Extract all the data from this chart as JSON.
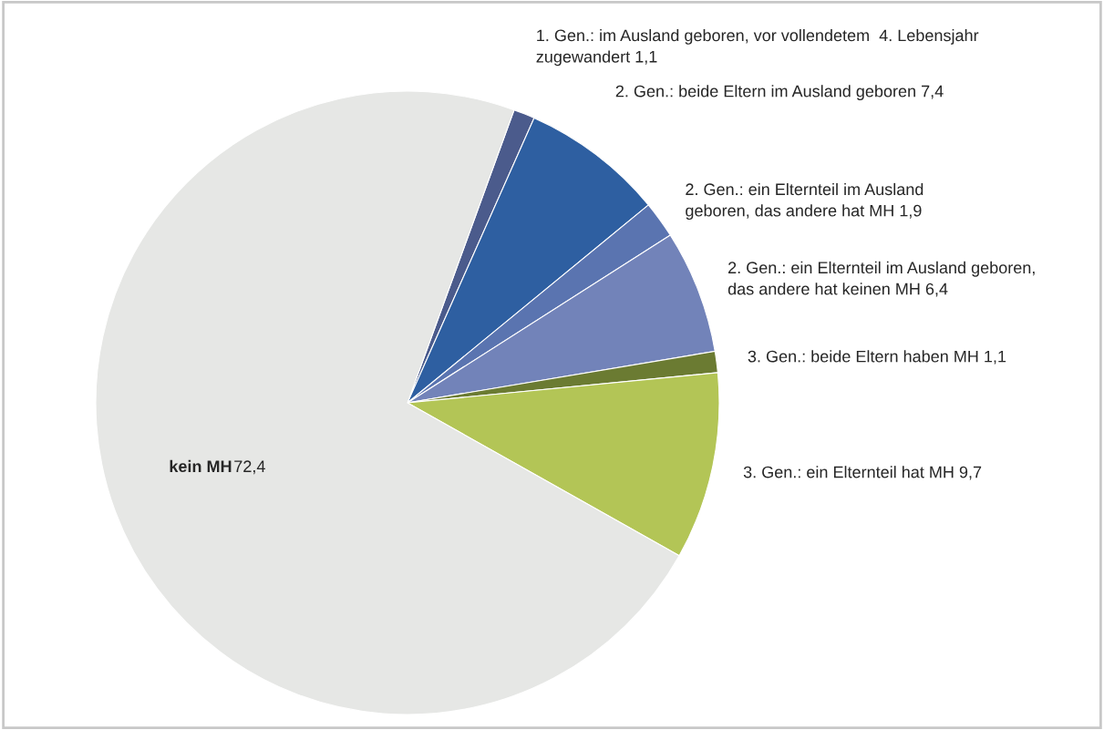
{
  "chart_data": {
    "type": "pie",
    "categories": [
      "1. Gen.: im Ausland geboren, vor vollendetem  4. Lebensjahr\nzugewandert",
      "2. Gen.: beide Eltern im Ausland geboren",
      "2. Gen.: ein Elternteil im Ausland\ngeboren, das andere hat MH",
      "2. Gen.: ein Elternteil im Ausland geboren,\ndas andere hat keinen MH",
      "3. Gen.: beide Eltern haben MH",
      "3. Gen.: ein Elternteil hat MH",
      "kein MH"
    ],
    "values": [
      1.1,
      7.4,
      1.9,
      6.4,
      1.1,
      9.7,
      72.4
    ],
    "value_labels": [
      "1,1",
      "7,4",
      "1,9",
      "6,4",
      "1,1",
      "9,7",
      "72,4"
    ],
    "colors": [
      "#4b5b8c",
      "#2e5fa1",
      "#5a74b0",
      "#7283b9",
      "#6b7b32",
      "#b3c556",
      "#e6e7e5"
    ]
  }
}
